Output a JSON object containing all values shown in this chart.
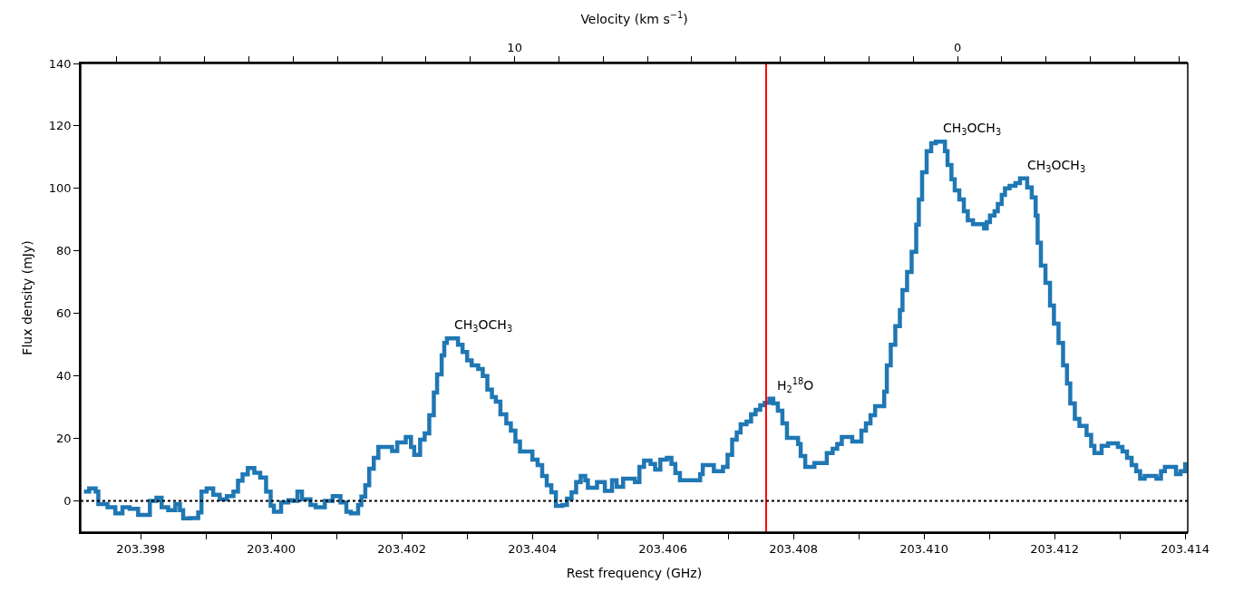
{
  "chart_data": {
    "type": "step",
    "xlabel": "Rest frequency (GHz)",
    "ylabel": "Flux density (mJy)",
    "x2label": "Velocity (km s$^{−1}$)",
    "x": [
      203.39713,
      203.39721,
      203.39731,
      203.39735,
      203.39749,
      203.39761,
      203.39772,
      203.39783,
      203.39796,
      203.39814,
      203.39824,
      203.39832,
      203.39842,
      203.39853,
      203.3986,
      203.39865,
      203.39876,
      203.39888,
      203.39893,
      203.39901,
      203.39911,
      203.39921,
      203.39932,
      203.39942,
      203.39949,
      203.39956,
      203.39964,
      203.39974,
      203.39983,
      203.39992,
      203.39999,
      203.40004,
      203.40015,
      203.40026,
      203.40033,
      203.4004,
      203.40047,
      203.4006,
      203.40068,
      203.40082,
      203.40094,
      203.40106,
      203.40115,
      203.40122,
      203.40133,
      203.40138,
      203.40144,
      203.4015,
      203.40157,
      203.40164,
      203.40185,
      203.40193,
      203.40206,
      203.40214,
      203.40219,
      203.40228,
      203.40235,
      203.40242,
      203.40249,
      203.40254,
      203.40261,
      203.40265,
      203.40269,
      203.40286,
      203.40293,
      203.403,
      203.40307,
      203.40317,
      203.40324,
      203.40331,
      203.40338,
      203.40344,
      203.40351,
      203.4036,
      203.40367,
      203.40374,
      203.40381,
      203.404,
      203.40408,
      203.40415,
      203.40422,
      203.40429,
      203.40436,
      203.40446,
      203.40453,
      203.4046,
      203.40467,
      203.40474,
      203.40481,
      203.40485,
      203.40499,
      203.40511,
      203.40522,
      203.40529,
      203.40539,
      203.40557,
      203.40564,
      203.40571,
      203.40581,
      203.40588,
      203.40596,
      203.40606,
      203.40613,
      203.40619,
      203.40626,
      203.4065,
      203.40657,
      203.40661,
      203.40678,
      203.40692,
      203.40699,
      203.40706,
      203.40713,
      203.40719,
      203.40728,
      203.40735,
      203.40742,
      203.40749,
      203.40756,
      203.40763,
      203.40769,
      203.40776,
      203.40783,
      203.4079,
      203.40807,
      203.40811,
      203.40818,
      203.40832,
      203.40851,
      203.4086,
      203.40867,
      203.40874,
      203.4089,
      203.40904,
      203.40911,
      203.40918,
      203.40925,
      203.40939,
      203.40943,
      203.40949,
      203.40956,
      203.40963,
      203.40967,
      203.40974,
      203.40981,
      203.40988,
      203.40992,
      203.40997,
      203.41004,
      203.41011,
      203.41018,
      203.41032,
      203.41036,
      203.41042,
      203.41047,
      203.41054,
      203.41061,
      203.41067,
      203.41075,
      203.41092,
      203.41096,
      203.41101,
      203.41108,
      203.41113,
      203.41119,
      203.41124,
      203.41131,
      203.4114,
      203.41147,
      203.41158,
      203.41165,
      203.41171,
      203.41174,
      203.41179,
      203.41186,
      203.41193,
      203.41199,
      203.41206,
      203.41213,
      203.41219,
      203.41224,
      203.41231,
      203.41238,
      203.41249,
      203.41256,
      203.41261,
      203.41272,
      203.41282,
      203.41297,
      203.41304,
      203.41311,
      203.41318,
      203.41325,
      203.41331,
      203.41338,
      203.41356,
      203.41363,
      203.41369,
      203.41386,
      203.41393,
      203.414
    ],
    "series": [
      {
        "color": "#1f77b4",
        "values": [
          3,
          4,
          3,
          -1,
          -2,
          -4,
          -2,
          -2.5,
          -4.5,
          0,
          1,
          -2,
          -3,
          -1,
          -3,
          -5.6,
          -5.5,
          -3.7,
          3,
          4,
          2,
          0.5,
          1.5,
          3,
          6.5,
          8.5,
          10.5,
          9,
          7.5,
          3,
          -1.5,
          -3.5,
          -0.5,
          0.2,
          0,
          3,
          0.5,
          -1.3,
          -2,
          0,
          1.5,
          -0.5,
          -3.5,
          -4,
          -1.3,
          1.4,
          5,
          10.3,
          13.8,
          17.3,
          16,
          18.7,
          20.5,
          17.3,
          14.7,
          19.6,
          21.6,
          27.4,
          34.7,
          40.5,
          46.6,
          50.6,
          52,
          50,
          47.7,
          45,
          43.4,
          42.2,
          40,
          35.6,
          33.2,
          31.8,
          27.7,
          24.8,
          22.5,
          19,
          15.8,
          13.2,
          11.5,
          8,
          5,
          2.8,
          -1.6,
          -1.3,
          0.7,
          2.8,
          6,
          8,
          6.6,
          4.2,
          6,
          3.2,
          6.6,
          4.5,
          7.1,
          6,
          10.9,
          12.9,
          11.8,
          10,
          13.2,
          13.8,
          11.8,
          8.9,
          6.6,
          6.6,
          8.6,
          11.5,
          9.5,
          10.9,
          14.7,
          19.6,
          21.9,
          24.5,
          25.4,
          27.7,
          29.2,
          30.6,
          31.4,
          32.7,
          31.2,
          28.9,
          24.8,
          20.2,
          18.2,
          14.4,
          10.9,
          12.1,
          15.3,
          16.7,
          18.2,
          20.5,
          19,
          22.5,
          24.8,
          27.4,
          30.3,
          35,
          43.4,
          50,
          55.9,
          61.1,
          67.5,
          73.3,
          79.7,
          88.4,
          96.5,
          105.2,
          111.9,
          114.5,
          115,
          111.9,
          107.5,
          102.9,
          99.4,
          96.5,
          92.7,
          89.8,
          88.6,
          87.2,
          89.2,
          91.3,
          92.7,
          95,
          97.9,
          100,
          100.8,
          101.7,
          103.2,
          100.3,
          97.1,
          91.3,
          82.6,
          75.3,
          69.8,
          62.5,
          56.7,
          50.6,
          43.4,
          37.6,
          31.2,
          26.3,
          24,
          21.1,
          17.6,
          15.3,
          17.6,
          18.4,
          17.3,
          15.8,
          13.8,
          11.5,
          9.5,
          7.1,
          8,
          7.1,
          9.5,
          10.9,
          8.6,
          9.5,
          12.4
        ]
      }
    ],
    "xlim": [
      203.39708,
      203.41404
    ],
    "ylim": [
      -10,
      140
    ],
    "xticks": [
      {
        "value": 203.398,
        "label": "203.398"
      },
      {
        "value": 203.399,
        "label": null
      },
      {
        "value": 203.4,
        "label": "203.400"
      },
      {
        "value": 203.401,
        "label": null
      },
      {
        "value": 203.402,
        "label": "203.402"
      },
      {
        "value": 203.403,
        "label": null
      },
      {
        "value": 203.404,
        "label": "203.404"
      },
      {
        "value": 203.405,
        "label": null
      },
      {
        "value": 203.406,
        "label": "203.406"
      },
      {
        "value": 203.407,
        "label": null
      },
      {
        "value": 203.408,
        "label": "203.408"
      },
      {
        "value": 203.409,
        "label": null
      },
      {
        "value": 203.41,
        "label": "203.410"
      },
      {
        "value": 203.411,
        "label": null
      },
      {
        "value": 203.412,
        "label": "203.412"
      },
      {
        "value": 203.413,
        "label": null
      },
      {
        "value": 203.414,
        "label": "203.414"
      }
    ],
    "yticks": [
      0,
      20,
      40,
      60,
      80,
      100,
      120,
      140
    ],
    "x2lim": [
      19.8,
      -5.2
    ],
    "x2ticks": [
      {
        "value": 19,
        "label": null
      },
      {
        "value": 18,
        "label": null
      },
      {
        "value": 17,
        "label": null
      },
      {
        "value": 16,
        "label": null
      },
      {
        "value": 15,
        "label": null
      },
      {
        "value": 14,
        "label": null
      },
      {
        "value": 13,
        "label": null
      },
      {
        "value": 12,
        "label": null
      },
      {
        "value": 11,
        "label": null
      },
      10,
      {
        "value": 9,
        "label": null
      },
      {
        "value": 8,
        "label": null
      },
      {
        "value": 7,
        "label": null
      },
      {
        "value": 6,
        "label": null
      },
      {
        "value": 5,
        "label": null
      },
      {
        "value": 4,
        "label": null
      },
      {
        "value": 3,
        "label": null
      },
      {
        "value": 2,
        "label": null
      },
      {
        "value": 1,
        "label": null
      },
      0,
      {
        "value": -1,
        "label": null
      },
      {
        "value": -2,
        "label": null
      },
      {
        "value": -3,
        "label": null
      },
      {
        "value": -4,
        "label": null
      },
      {
        "value": -5,
        "label": null
      }
    ],
    "ref_lines": [
      {
        "axis": "x",
        "value": 203.40758,
        "color": "#ff0000",
        "line_style": "solid"
      },
      {
        "axis": "y",
        "value": 0,
        "color": "#000000",
        "line_style": "dotted"
      }
    ],
    "annotations": [
      {
        "text": "CH$_{3}$OCH$_{3}$",
        "x": 203.40269,
        "y": 52
      },
      {
        "text": "CH$_{3}$OCH$_{3}$",
        "x": 203.41018,
        "y": 115
      },
      {
        "text": "CH$_{3}$OCH$_{3}$",
        "x": 203.41147,
        "y": 103.2
      },
      {
        "text": "H$_{2}$$^{18}$O",
        "x": 203.40763,
        "y": 32.7
      }
    ],
    "marker": "none",
    "line_style": "solid"
  }
}
